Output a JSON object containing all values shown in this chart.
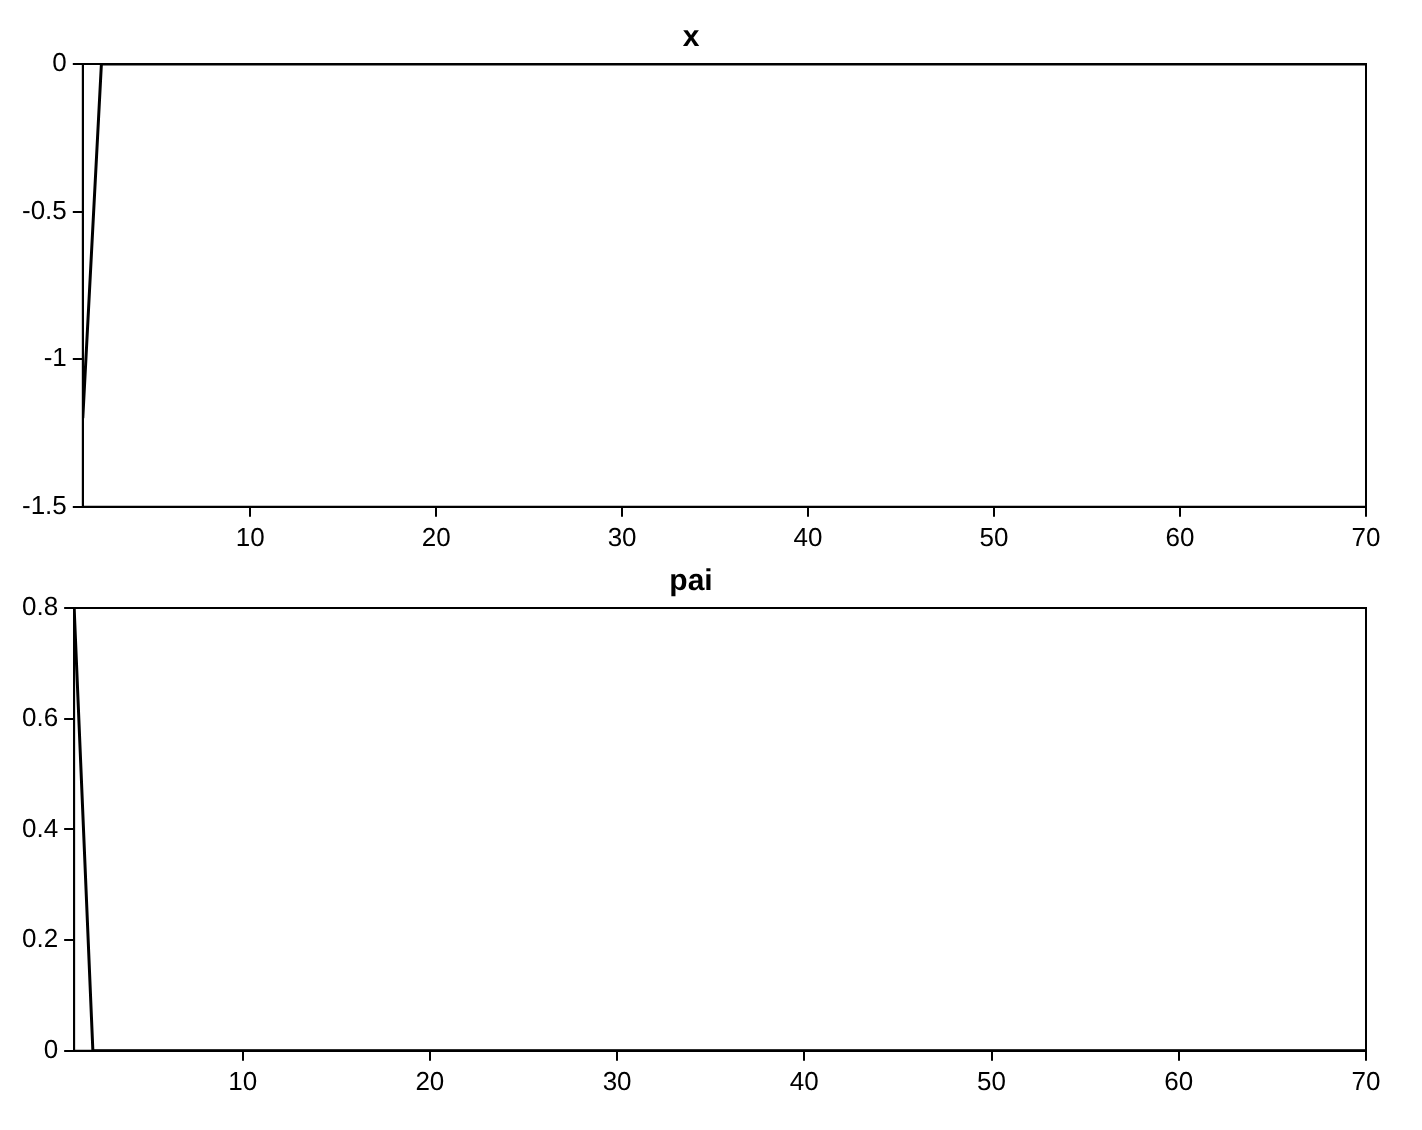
{
  "chart_data": [
    {
      "type": "line",
      "title": "x",
      "x": [
        1,
        2,
        70
      ],
      "series": [
        {
          "color": "#000000",
          "values": [
            -1.2,
            0,
            0
          ]
        }
      ],
      "xlim": [
        1,
        70
      ],
      "xticks": [
        10,
        20,
        30,
        40,
        50,
        60,
        70
      ],
      "ylim": [
        -1.5,
        0
      ],
      "yticks": [
        -1.5,
        -1,
        -0.5,
        0
      ],
      "grid": false,
      "legend": false,
      "marker": "none",
      "line_style": "solid"
    },
    {
      "type": "line",
      "title": "pai",
      "x": [
        1,
        2,
        70
      ],
      "series": [
        {
          "color": "#000000",
          "values": [
            0.8,
            0,
            0
          ]
        }
      ],
      "xlim": [
        1,
        70
      ],
      "xticks": [
        10,
        20,
        30,
        40,
        50,
        60,
        70
      ],
      "ylim": [
        0,
        0.8
      ],
      "yticks": [
        0,
        0.2,
        0.4,
        0.6,
        0.8
      ],
      "grid": false,
      "legend": false,
      "marker": "none",
      "line_style": "solid"
    }
  ]
}
